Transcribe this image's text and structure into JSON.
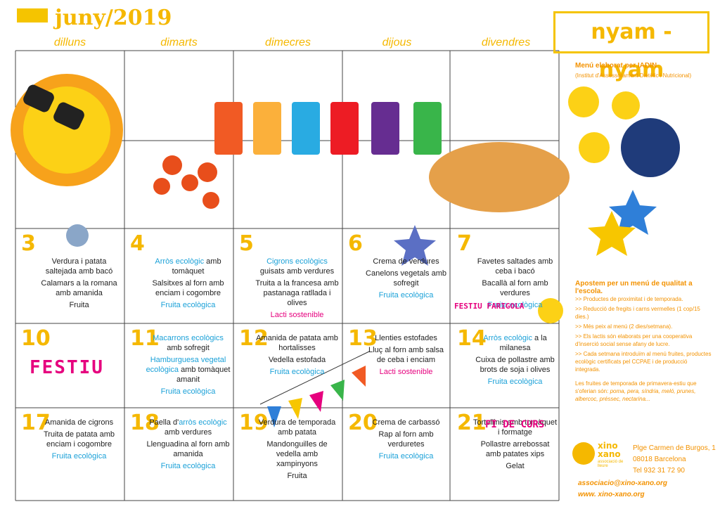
{
  "header": {
    "month": "juny/2019",
    "brand": "nyam - nyam",
    "days": [
      "dilluns",
      "dimarts",
      "dimecres",
      "dijous",
      "divendres"
    ]
  },
  "weeks": [
    {
      "days": [
        {
          "number": "3",
          "items": [
            [
              {
                "text": "Verdura i patata saltejada amb bacó"
              }
            ],
            [
              {
                "text": "Calamars a la romana amb amanida"
              }
            ],
            [
              {
                "text": "Fruita"
              }
            ]
          ]
        },
        {
          "number": "4",
          "items": [
            [
              {
                "text": "Arròs ecològic",
                "color": "#1ba1d8"
              },
              {
                "text": " amb tomàquet"
              }
            ],
            [
              {
                "text": "Salsitxes al forn amb enciam i cogombre"
              }
            ],
            [
              {
                "text": "Fruita ecològica",
                "color": "#1ba1d8"
              }
            ]
          ]
        },
        {
          "number": "5",
          "items": [
            [
              {
                "text": "Cigrons ecològics",
                "color": "#1ba1d8"
              },
              {
                "text": " guisats amb verdures"
              }
            ],
            [
              {
                "text": "Truita a la francesa amb pastanaga ratllada i olives"
              }
            ],
            [
              {
                "text": "Lacti sostenible",
                "color": "#e6007e"
              }
            ]
          ]
        },
        {
          "number": "6",
          "items": [
            [
              {
                "text": "Crema de verdures"
              }
            ],
            [
              {
                "text": "Canelons vegetals amb sofregit"
              }
            ],
            [
              {
                "text": "Fruita ecològica",
                "color": "#1ba1d8"
              }
            ]
          ]
        },
        {
          "number": "7",
          "items": [
            [
              {
                "text": "Favetes saltades amb ceba i bacó"
              }
            ],
            [
              {
                "text": "Bacallà al forn amb verdures"
              }
            ],
            [
              {
                "text": "Fruita ecològica",
                "color": "#1ba1d8"
              }
            ]
          ],
          "tag": "FESTIU FARIGOLA"
        }
      ]
    },
    {
      "days": [
        {
          "number": "10",
          "holiday": "FESTIU"
        },
        {
          "number": "11",
          "items": [
            [
              {
                "text": "Macarrons ecològics",
                "color": "#1ba1d8"
              },
              {
                "text": " amb sofregit"
              }
            ],
            [
              {
                "text": "Hamburguesa vegetal ecològica",
                "color": "#1ba1d8"
              },
              {
                "text": " amb tomàquet amanit"
              }
            ],
            [
              {
                "text": "Fruita ecològica",
                "color": "#1ba1d8"
              }
            ]
          ]
        },
        {
          "number": "12",
          "items": [
            [
              {
                "text": "Amanida de patata amb hortalisses"
              }
            ],
            [
              {
                "text": "Vedella estofada"
              }
            ],
            [
              {
                "text": "Fruita ecològica",
                "color": "#1ba1d8"
              }
            ]
          ]
        },
        {
          "number": "13",
          "items": [
            [
              {
                "text": "Llenties estofades"
              }
            ],
            [
              {
                "text": "Lluç al forn amb salsa de ceba i enciam"
              }
            ],
            [
              {
                "text": "Lacti sostenible",
                "color": "#e6007e"
              }
            ]
          ]
        },
        {
          "number": "14",
          "items": [
            [
              {
                "text": "Arròs ecològic",
                "color": "#1ba1d8"
              },
              {
                "text": " a la milanesa"
              }
            ],
            [
              {
                "text": "Cuixa de pollastre amb brots de soja i olives"
              }
            ],
            [
              {
                "text": "Fruita ecològica",
                "color": "#1ba1d8"
              }
            ]
          ]
        }
      ]
    },
    {
      "days": [
        {
          "number": "17",
          "items": [
            [
              {
                "text": "Amanida de cigrons"
              }
            ],
            [
              {
                "text": "Truita de patata amb enciam i cogombre"
              }
            ],
            [
              {
                "text": "Fruita ecològica",
                "color": "#1ba1d8"
              }
            ]
          ]
        },
        {
          "number": "18",
          "items": [
            [
              {
                "text": "Paella d'"
              },
              {
                "text": "arròs ecològic",
                "color": "#1ba1d8"
              },
              {
                "text": " amb verdures"
              }
            ],
            [
              {
                "text": "Llenguadina al forn amb amanida"
              }
            ],
            [
              {
                "text": "Fruita ecològica",
                "color": "#1ba1d8"
              }
            ]
          ]
        },
        {
          "number": "19",
          "items": [
            [
              {
                "text": "Verdura de temporada amb patata"
              }
            ],
            [
              {
                "text": "Mandonguilles de vedella amb xampinyons"
              }
            ],
            [
              {
                "text": "Fruita"
              }
            ]
          ]
        },
        {
          "number": "20",
          "items": [
            [
              {
                "text": "Crema de carbassó"
              }
            ],
            [
              {
                "text": "Rap al forn amb verduretes"
              }
            ],
            [
              {
                "text": "Fruita ecològica",
                "color": "#1ba1d8"
              }
            ]
          ]
        },
        {
          "number": "21",
          "items": [
            [
              {
                "text": "Tortellinis amb tomàquet i formatge"
              }
            ],
            [
              {
                "text": "Pollastre arrebossat amb patates xips"
              }
            ],
            [
              {
                "text": "Gelat"
              }
            ]
          ],
          "tag": "FI DE CURS"
        }
      ]
    }
  ],
  "sidebar": {
    "credit": "Menú elaborat per IADIN",
    "credit_sub": "(Institut d'Assessorament Dietètic i Nutricional)",
    "heading": "Apostem per un menú de qualitat a l'escola.",
    "bullets": [
      ">> Productes de proximitat i de temporada.",
      ">> Reducció de fregits i carns vermelles (1 cop/15 dies.)",
      ">> Més peix al menú (2 dies/setmana).",
      ">> Els lactis són elaborats per una cooperativa d'inserció social sense afany de lucre.",
      ">> Cada setmana introduïm al menú fruites, productes ecològic certificats pel CCPAE i de producció integrada."
    ],
    "fruits_intro": "Les fruites de temporada de primavera-estiu que s'oferian són:",
    "fruits_list": "poma, pera, síndria, meló, prunes, albercoc, préssec, nectarina..."
  },
  "footer": {
    "logo_name": "xino xano",
    "logo_sub": "associació de lleure",
    "address": "Plge Carmen de Burgos, 1",
    "city": "08018 Barcelona",
    "phone": "Tel 932 31 72 90",
    "email": "associacio@xino-xano.org",
    "web": "www. xino-xano.org"
  }
}
